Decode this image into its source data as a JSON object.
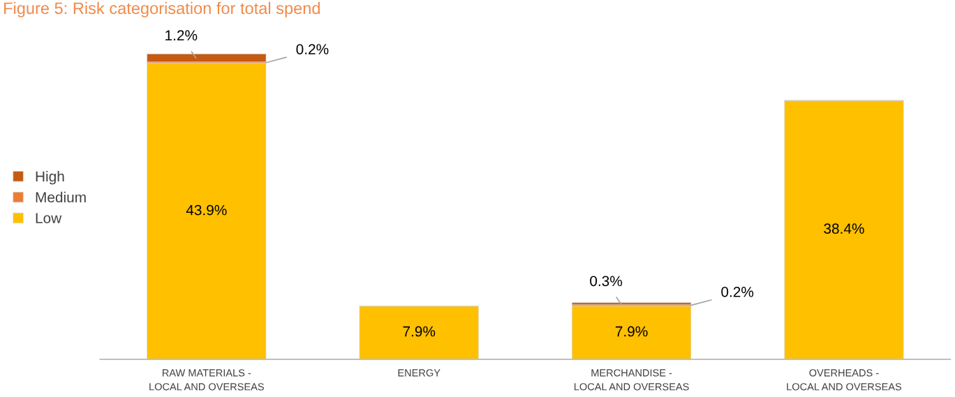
{
  "chart_data": {
    "type": "bar",
    "title": "Figure 5: Risk categorisation for total spend",
    "categories": [
      "RAW MATERIALS -\nLOCAL AND OVERSEAS",
      "ENERGY",
      "MERCHANDISE -\nLOCAL AND OVERSEAS",
      "OVERHEADS -\nLOCAL AND OVERSEAS"
    ],
    "stacked": true,
    "legend": "left",
    "series": [
      {
        "name": "Low",
        "color": "#ffc000",
        "values": [
          43.9,
          7.9,
          7.9,
          38.4
        ],
        "value_labels": [
          "43.9%",
          "7.9%",
          "7.9%",
          "38.4%"
        ]
      },
      {
        "name": "Medium",
        "color": "#ed7d31",
        "values": [
          0.2,
          null,
          0.2,
          null
        ],
        "value_labels": [
          "0.2%",
          null,
          "0.2%",
          null
        ]
      },
      {
        "name": "High",
        "color": "#c55a11",
        "values": [
          1.2,
          null,
          0.3,
          null
        ],
        "value_labels": [
          "1.2%",
          null,
          "0.3%",
          null
        ]
      }
    ]
  }
}
